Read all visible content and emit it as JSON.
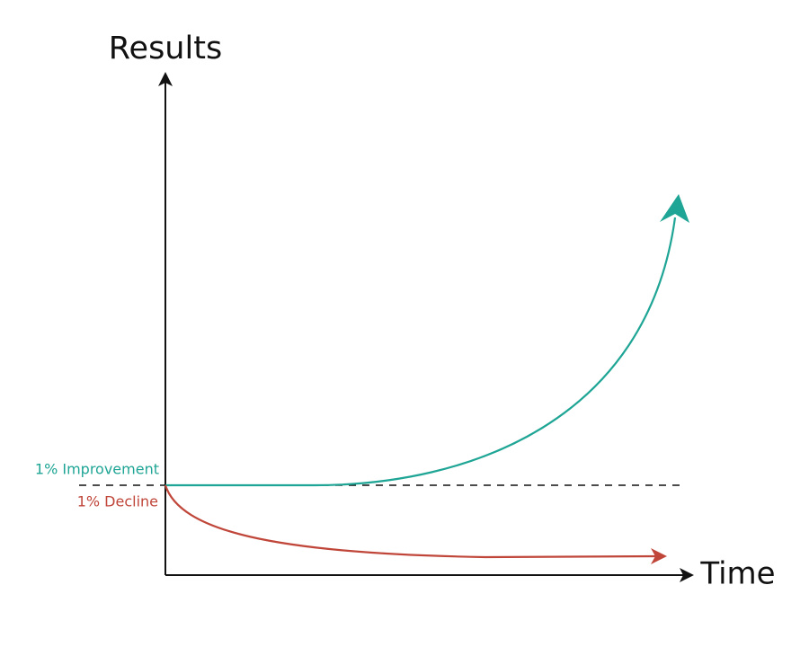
{
  "axes": {
    "y_label": "Results",
    "x_label": "Time"
  },
  "curves": {
    "improvement": "1% Improvement",
    "decline": "1% Decline"
  }
}
